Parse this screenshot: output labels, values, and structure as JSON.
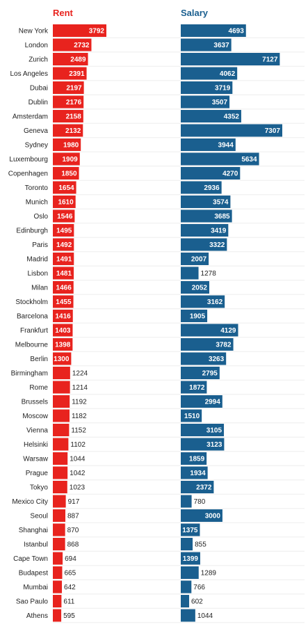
{
  "chart_data": {
    "type": "bar",
    "categories": [
      "New York",
      "London",
      "Zurich",
      "Los Angeles",
      "Dubai",
      "Dublin",
      "Amsterdam",
      "Geneva",
      "Sydney",
      "Luxembourg",
      "Copenhagen",
      "Toronto",
      "Munich",
      "Oslo",
      "Edinburgh",
      "Paris",
      "Madrid",
      "Lisbon",
      "Milan",
      "Stockholm",
      "Barcelona",
      "Frankfurt",
      "Melbourne",
      "Berlin",
      "Birmingham",
      "Rome",
      "Brussels",
      "Moscow",
      "Vienna",
      "Helsinki",
      "Warsaw",
      "Prague",
      "Tokyo",
      "Mexico City",
      "Seoul",
      "Shanghai",
      "Istanbul",
      "Cape Town",
      "Budapest",
      "Mumbai",
      "Sao Paulo",
      "Athens"
    ],
    "series": [
      {
        "name": "Rent",
        "values": [
          3792,
          2732,
          2489,
          2391,
          2197,
          2176,
          2158,
          2132,
          1980,
          1909,
          1850,
          1654,
          1610,
          1546,
          1495,
          1492,
          1491,
          1481,
          1466,
          1455,
          1416,
          1403,
          1398,
          1300,
          1224,
          1214,
          1192,
          1182,
          1152,
          1102,
          1044,
          1042,
          1023,
          917,
          887,
          870,
          868,
          694,
          665,
          642,
          611,
          595
        ],
        "color": "#e8231e"
      },
      {
        "name": "Salary",
        "values": [
          4693,
          3637,
          7127,
          4062,
          3719,
          3507,
          4352,
          7307,
          3944,
          5634,
          4270,
          2936,
          3574,
          3685,
          3419,
          3322,
          2007,
          1278,
          2052,
          3162,
          1905,
          4129,
          3782,
          3263,
          2795,
          1872,
          2994,
          1510,
          3105,
          3123,
          1859,
          1934,
          2372,
          780,
          3000,
          1375,
          855,
          1399,
          1289,
          766,
          602,
          1044
        ],
        "color": "#1a5f8f"
      }
    ],
    "rent_scale_max": 3792,
    "salary_scale_max": 7307
  }
}
